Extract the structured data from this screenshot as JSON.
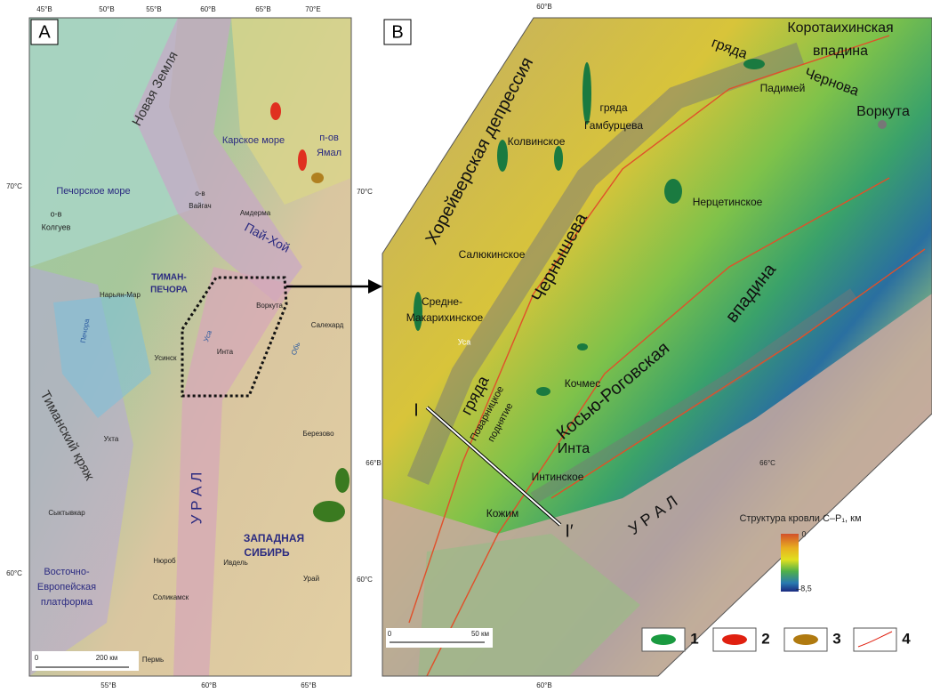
{
  "panel_a": {
    "label": "A",
    "ticks_top": [
      "45°В",
      "50°В",
      "55°В",
      "60°В",
      "65°В",
      "70°Е"
    ],
    "ticks_bottom": [
      "55°В",
      "60°В",
      "65°В"
    ],
    "ticks_left": [
      "70°С",
      "60°С"
    ],
    "ticks_right": [
      "70°С",
      "60°С"
    ],
    "labels": [
      "Новая Земля",
      "Карское море",
      "п-ов",
      "Ямал",
      "Печорское море",
      "о-в",
      "Колгуев",
      "о-в",
      "Вайгач",
      "Амдерма",
      "Пай-Хой",
      "ТИМАН-",
      "ПЕЧОРА",
      "Нарьян-Мар",
      "Воркута",
      "Салехард",
      "Печора",
      "Уса",
      "Обь",
      "Усинск",
      "Инта",
      "Тиманский кряж",
      "Ухта",
      "Березово",
      "У Р А Л",
      "Сыктывкар",
      "ЗАПАДНАЯ",
      "СИБИРЬ",
      "Нюроб",
      "Ивдель",
      "Восточно-",
      "Европейская",
      "платформа",
      "Урай",
      "Соликамск",
      "Пермь"
    ],
    "scale": [
      "0",
      "200 км"
    ]
  },
  "panel_b": {
    "label": "B",
    "ticks": [
      "60°В",
      "60°В",
      "66°В",
      "66°С"
    ],
    "labels": [
      "Коротаихинская",
      "впадина",
      "гряда",
      "Чернова",
      "Падимей",
      "Воркута",
      "Хорейверская депрессия",
      "гряда",
      "Гамбурцева",
      "Колвинское",
      "Нерцетинское",
      "Салюкинское",
      "Средне-",
      "Макарихинское",
      "Уса",
      "Чернышева",
      "впадина",
      "Кочмес",
      "гряда",
      "Поварницкое",
      "поднятие",
      "I",
      "Косью-Роговская",
      "Инта",
      "Интинское",
      "Кожим",
      "I′",
      "У Р А Л"
    ],
    "scale": [
      "0",
      "50 км"
    ]
  },
  "legend": {
    "title": "Структура кровли C–P₁, км",
    "max": "0",
    "min": "–8,5",
    "items": [
      "1",
      "2",
      "3",
      "4"
    ]
  }
}
